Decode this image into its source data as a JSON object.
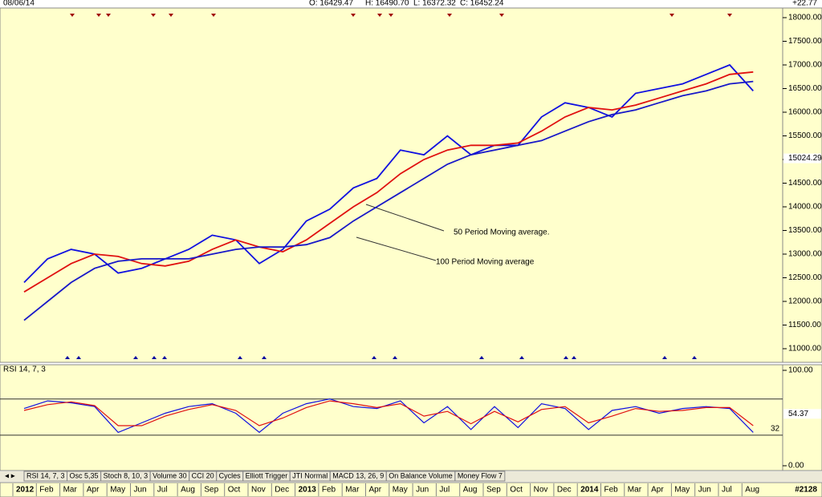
{
  "header": {
    "date": "08/06/14",
    "open": "O: 16429.47",
    "high": "H: 16490.70",
    "low": "L: 16372.32",
    "close": "C: 16452.24",
    "change": "+22.77"
  },
  "chart_data": [
    {
      "type": "line",
      "categories": [
        "2012",
        "Feb",
        "Mar",
        "Apr",
        "May",
        "Jun",
        "Jul",
        "Aug",
        "Sep",
        "Oct",
        "Nov",
        "Dec",
        "2013",
        "Feb",
        "Mar",
        "Apr",
        "May",
        "Jun",
        "Jul",
        "Aug",
        "Sep",
        "Oct",
        "Nov",
        "Dec",
        "2014",
        "Feb",
        "Mar",
        "Apr",
        "May",
        "Jun",
        "Jul",
        "Aug"
      ],
      "series": [
        {
          "color": "#1010e0",
          "values": [
            12400,
            12900,
            13100,
            13000,
            12600,
            12700,
            12900,
            13100,
            13400,
            13300,
            12800,
            13100,
            13700,
            13950,
            14400,
            14600,
            15200,
            15100,
            15500,
            15100,
            15300,
            15300,
            15900,
            16200,
            16100,
            15900,
            16400,
            16500,
            16600,
            16800,
            17000,
            16450
          ]
        },
        {
          "color": "#e01010",
          "values": [
            12200,
            12500,
            12800,
            13000,
            12950,
            12800,
            12750,
            12850,
            13100,
            13300,
            13150,
            13050,
            13300,
            13650,
            14000,
            14300,
            14700,
            15000,
            15200,
            15300,
            15300,
            15350,
            15600,
            15900,
            16100,
            16050,
            16150,
            16300,
            16450,
            16600,
            16800,
            16850
          ]
        },
        {
          "color": "#1818c8",
          "values": [
            11600,
            12000,
            12400,
            12700,
            12850,
            12900,
            12900,
            12900,
            13000,
            13100,
            13150,
            13150,
            13200,
            13350,
            13700,
            14000,
            14300,
            14600,
            14900,
            15100,
            15200,
            15300,
            15400,
            15600,
            15800,
            15950,
            16050,
            16200,
            16350,
            16450,
            16600,
            16650
          ]
        }
      ],
      "ylim": [
        10750,
        18200
      ],
      "yticks": [
        {
          "value": 11000,
          "label": "11000.00"
        },
        {
          "value": 11500,
          "label": "11500.00"
        },
        {
          "value": 12000,
          "label": "12000.00"
        },
        {
          "value": 12500,
          "label": "12500.00"
        },
        {
          "value": 13000,
          "label": "13000.00"
        },
        {
          "value": 13500,
          "label": "13500.00"
        },
        {
          "value": 14000,
          "label": "14000.00"
        },
        {
          "value": 14500,
          "label": "14500.00"
        },
        {
          "value": 15000,
          "label": "15000.00"
        },
        {
          "value": 15500,
          "label": "15500.00"
        },
        {
          "value": 16000,
          "label": "16000.00"
        },
        {
          "value": 16500,
          "label": "16500.00"
        },
        {
          "value": 17000,
          "label": "17000.00"
        },
        {
          "value": 17500,
          "label": "17500.00"
        },
        {
          "value": 18000,
          "label": "18000.00"
        }
      ],
      "marker": {
        "value": 15024.29,
        "label": "15024.29"
      },
      "annotations": [
        "50 Period Moving average.",
        "100 Period Moving average"
      ]
    },
    {
      "type": "line",
      "title": "RSI 14, 7, 3",
      "series": [
        {
          "color": "#1010e0",
          "values": [
            60,
            68,
            66,
            62,
            35,
            45,
            55,
            62,
            65,
            55,
            35,
            55,
            65,
            70,
            62,
            60,
            68,
            45,
            62,
            38,
            62,
            40,
            65,
            60,
            38,
            58,
            62,
            55,
            60,
            62,
            60,
            35
          ]
        },
        {
          "color": "#e01010",
          "values": [
            58,
            64,
            67,
            63,
            42,
            42,
            52,
            59,
            64,
            58,
            42,
            50,
            61,
            68,
            65,
            61,
            65,
            52,
            57,
            44,
            57,
            46,
            59,
            62,
            45,
            52,
            60,
            57,
            58,
            61,
            61,
            42
          ]
        }
      ],
      "ylim": [
        0,
        100
      ],
      "yticks": [
        {
          "value": 0,
          "label": "0.00"
        },
        {
          "value": 100,
          "label": "100.00"
        }
      ],
      "levels": [
        70,
        {
          "value": 32,
          "label": "32"
        }
      ],
      "marker": {
        "value": 54.37,
        "label": "54.37"
      }
    }
  ],
  "tabs": [
    "RSI 14, 7, 3",
    "Osc 5,35",
    "Stoch 8, 10, 3",
    "Volume 30",
    "CCI 20",
    "Cycles",
    "Elliott Trigger",
    "JTI Normal",
    "MACD 13, 26, 9",
    "On Balance Volume",
    "Money Flow 7"
  ],
  "footer": "#2128"
}
